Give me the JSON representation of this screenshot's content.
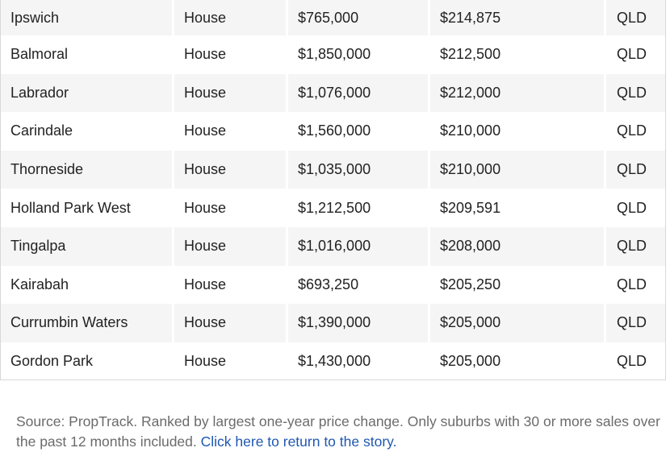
{
  "rows": [
    {
      "suburb": "Ipswich",
      "type": "House",
      "median": "$765,000",
      "change": "$214,875",
      "state": "QLD"
    },
    {
      "suburb": "Balmoral",
      "type": "House",
      "median": "$1,850,000",
      "change": "$212,500",
      "state": "QLD"
    },
    {
      "suburb": "Labrador",
      "type": "House",
      "median": "$1,076,000",
      "change": "$212,000",
      "state": "QLD"
    },
    {
      "suburb": "Carindale",
      "type": "House",
      "median": "$1,560,000",
      "change": "$210,000",
      "state": "QLD"
    },
    {
      "suburb": "Thorneside",
      "type": "House",
      "median": "$1,035,000",
      "change": "$210,000",
      "state": "QLD"
    },
    {
      "suburb": "Holland Park West",
      "type": "House",
      "median": "$1,212,500",
      "change": "$209,591",
      "state": "QLD"
    },
    {
      "suburb": "Tingalpa",
      "type": "House",
      "median": "$1,016,000",
      "change": "$208,000",
      "state": "QLD"
    },
    {
      "suburb": "Kairabah",
      "type": "House",
      "median": "$693,250",
      "change": "$205,250",
      "state": "QLD"
    },
    {
      "suburb": "Currumbin Waters",
      "type": "House",
      "median": "$1,390,000",
      "change": "$205,000",
      "state": "QLD"
    },
    {
      "suburb": "Gordon Park",
      "type": "House",
      "median": "$1,430,000",
      "change": "$205,000",
      "state": "QLD"
    }
  ],
  "footnote": {
    "text": "Source: PropTrack. Ranked by largest one-year price change. Only suburbs with 30 or more sales over the past 12 months included. ",
    "link_text": "Click here to return to the story."
  },
  "colors": {
    "row_alt": "#f5f5f5",
    "row_plain": "#ffffff",
    "link": "#1f57b0",
    "footnote_text": "#6b6b6b"
  }
}
